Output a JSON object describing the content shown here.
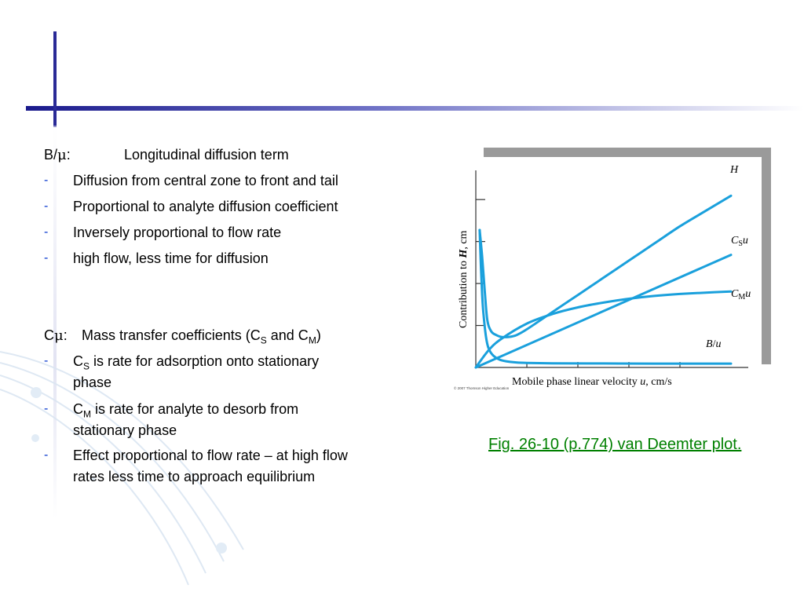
{
  "section_b": {
    "label": "B/",
    "mu": "μ",
    "colon": ":",
    "title": "Longitudinal diffusion term",
    "bullets": [
      "Diffusion from central zone to front and tail",
      "Proportional to analyte diffusion coefficient",
      "Inversely proportional to flow rate",
      "high flow, less time for diffusion"
    ]
  },
  "section_c": {
    "label": "C",
    "mu": "μ",
    "colon": ":",
    "title_pre": "Mass transfer coefficients (C",
    "sub_s": "S",
    "title_mid": " and C",
    "sub_m": "M",
    "title_post": ")",
    "bullet1_c": "C",
    "bullet1_sub": "S",
    "bullet1_line1": " is rate for adsorption onto stationary",
    "bullet1_line2": "phase",
    "bullet2_c": "C",
    "bullet2_sub": "M",
    "bullet2_line1": " is rate for analyte to desorb from",
    "bullet2_line2": "stationary phase",
    "bullet3_line1": "Effect proportional to flow rate – at high flow",
    "bullet3_line2": "rates less time to approach equilibrium"
  },
  "bullet_marker": "-",
  "figure_caption": "Fig. 26-10 (p.774)  van Deemter plot.",
  "chart_data": {
    "type": "line",
    "xlabel_pre": "Mobile phase linear velocity ",
    "xlabel_var": "u",
    "xlabel_post": ", cm/s",
    "ylabel_pre": "Contribution to ",
    "ylabel_var": "H",
    "ylabel_post": ", cm",
    "copyright": "© 2007 Thomson Higher Education",
    "series_labels": {
      "H": "H",
      "CS_c": "C",
      "CS_sub": "S",
      "CS_u": "u",
      "CM_c": "C",
      "CM_sub": "M",
      "CM_u": "u",
      "B": "B",
      "B_slash": "/",
      "B_u": "u"
    },
    "x_range": [
      0,
      10
    ],
    "y_range": [
      0,
      10
    ],
    "series": [
      {
        "name": "H",
        "x": [
          0.15,
          0.25,
          0.35,
          0.45,
          0.6,
          0.8,
          1.0,
          1.3,
          1.6,
          2.0,
          3.0,
          4.0,
          5.0,
          6.0,
          7.0,
          8.0,
          9.0,
          10.0
        ],
        "y": [
          7.2,
          5.8,
          4.0,
          2.5,
          1.9,
          1.7,
          1.6,
          1.6,
          1.7,
          2.0,
          2.9,
          3.8,
          4.7,
          5.6,
          6.5,
          7.4,
          8.2,
          9.0
        ]
      },
      {
        "name": "C_S u",
        "x": [
          0,
          10
        ],
        "y": [
          0,
          5.9
        ]
      },
      {
        "name": "C_M u",
        "x": [
          0,
          0.5,
          1.0,
          2.0,
          3.0,
          4.0,
          5.0,
          6.0,
          7.0,
          8.0,
          9.0,
          10.0
        ],
        "y": [
          0,
          0.9,
          1.5,
          2.3,
          2.8,
          3.15,
          3.4,
          3.6,
          3.75,
          3.85,
          3.92,
          3.98
        ]
      },
      {
        "name": "B/u",
        "x": [
          0.15,
          0.2,
          0.25,
          0.3,
          0.4,
          0.5,
          0.7,
          1.0,
          1.5,
          2.0,
          3.0,
          5.0,
          7.0,
          10.0
        ],
        "y": [
          7.2,
          5.3,
          3.8,
          2.8,
          1.6,
          1.0,
          0.6,
          0.38,
          0.27,
          0.24,
          0.22,
          0.21,
          0.2,
          0.2
        ]
      }
    ]
  }
}
